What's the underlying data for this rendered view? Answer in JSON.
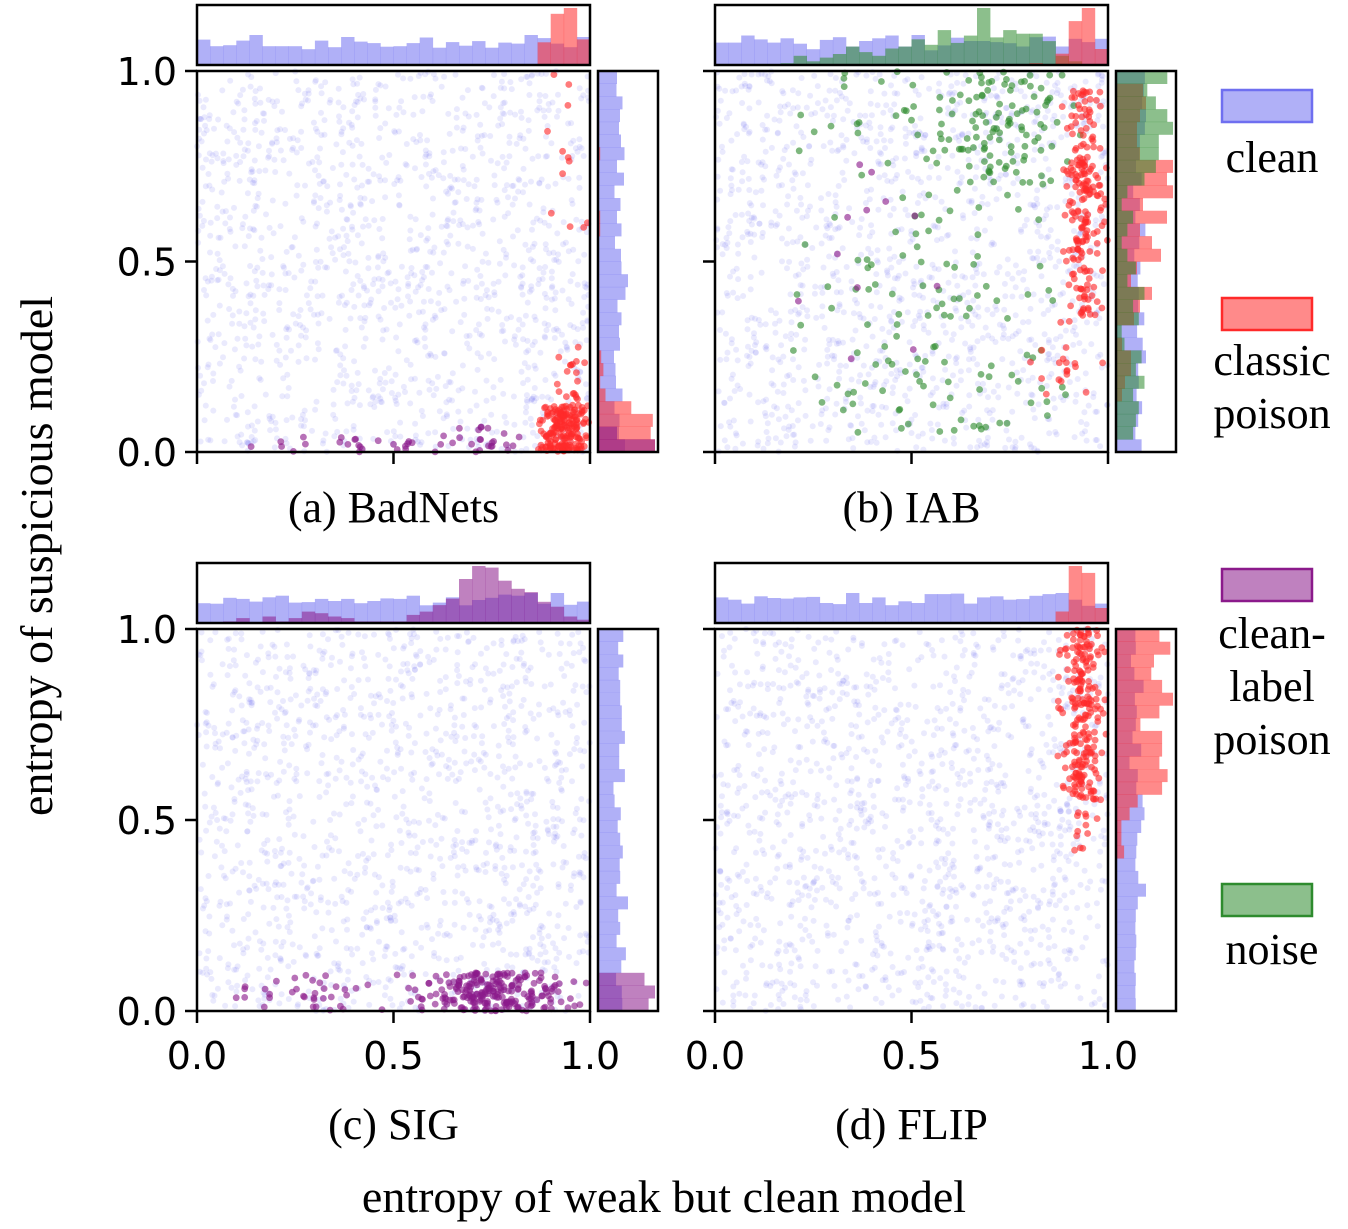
{
  "figure": {
    "ylabel": "entropy of suspicious model",
    "xlabel": "entropy of weak but clean model"
  },
  "colors": {
    "clean": "#6f6ff0",
    "classic_poison": "#ff2a2a",
    "clean_label_poison": "#8b1a8b",
    "noise": "#2e8b2e"
  },
  "legend": {
    "items": [
      {
        "key": "clean",
        "lines": [
          "clean"
        ]
      },
      {
        "key": "classic_poison",
        "lines": [
          "classic",
          "poison"
        ]
      },
      {
        "key": "clean_label_poison",
        "lines": [
          "clean-",
          "label",
          "poison"
        ]
      },
      {
        "key": "noise",
        "lines": [
          "noise"
        ]
      }
    ]
  },
  "chart_data": [
    {
      "type": "scatter",
      "title": "(a) BadNets",
      "xlim": [
        0,
        1
      ],
      "ylim": [
        0,
        1
      ],
      "xticks": [
        "0.0",
        "0.5",
        "1.0"
      ],
      "yticks": [
        "0.0",
        "0.5",
        "1.0"
      ],
      "show_xtick_labels": false,
      "show_ytick_labels": true,
      "series": [
        {
          "name": "clean",
          "dist": "uniform",
          "n": 1300
        },
        {
          "name": "classic poison",
          "clusters": [
            {
              "x": [
                0.86,
                1.0
              ],
              "y": [
                0.0,
                0.12
              ],
              "n": 180
            },
            {
              "x": [
                0.9,
                1.0
              ],
              "y": [
                0.12,
                0.3
              ],
              "n": 22
            },
            {
              "x": [
                0.88,
                1.0
              ],
              "y": [
                0.55,
                1.0
              ],
              "n": 12
            }
          ]
        },
        {
          "name": "clean-label poison",
          "clusters": [
            {
              "x": [
                0.08,
                0.85
              ],
              "y": [
                0.0,
                0.04
              ],
              "n": 30
            },
            {
              "x": [
                0.62,
                0.86
              ],
              "y": [
                0.0,
                0.07
              ],
              "n": 18
            }
          ]
        }
      ],
      "marginals": {
        "top": [
          "clean",
          "classic poison"
        ],
        "right": [
          "clean",
          "classic poison",
          "clean-label poison"
        ]
      }
    },
    {
      "type": "scatter",
      "title": "(b) IAB",
      "xlim": [
        0,
        1
      ],
      "ylim": [
        0,
        1
      ],
      "xticks": [
        "0.0",
        "0.5",
        "1.0"
      ],
      "yticks": [
        "0.0",
        "0.5",
        "1.0"
      ],
      "show_xtick_labels": false,
      "show_ytick_labels": false,
      "series": [
        {
          "name": "clean",
          "dist": "uniform",
          "n": 1300
        },
        {
          "name": "classic poison",
          "clusters": [
            {
              "x": [
                0.88,
                1.0
              ],
              "y": [
                0.35,
                0.95
              ],
              "n": 200
            },
            {
              "x": [
                0.8,
                1.0
              ],
              "y": [
                0.15,
                0.4
              ],
              "n": 20
            }
          ]
        },
        {
          "name": "noise",
          "clusters": [
            {
              "x": [
                0.15,
                0.95
              ],
              "y": [
                0.05,
                1.0
              ],
              "n": 160
            },
            {
              "x": [
                0.5,
                0.95
              ],
              "y": [
                0.7,
                1.0
              ],
              "n": 90
            }
          ]
        },
        {
          "name": "clean-label poison",
          "clusters": [
            {
              "x": [
                0.1,
                0.7
              ],
              "y": [
                0.15,
                0.85
              ],
              "n": 12
            }
          ]
        }
      ],
      "marginals": {
        "top": [
          "clean",
          "noise",
          "classic poison"
        ],
        "right": [
          "clean",
          "classic poison",
          "noise"
        ]
      }
    },
    {
      "type": "scatter",
      "title": "(c) SIG",
      "xlim": [
        0,
        1
      ],
      "ylim": [
        0,
        1
      ],
      "xticks": [
        "0.0",
        "0.5",
        "1.0"
      ],
      "yticks": [
        "0.0",
        "0.5",
        "1.0"
      ],
      "show_xtick_labels": true,
      "show_ytick_labels": true,
      "series": [
        {
          "name": "clean",
          "dist": "uniform",
          "n": 1300
        },
        {
          "name": "clean-label poison",
          "clusters": [
            {
              "x": [
                0.5,
                1.0
              ],
              "y": [
                0.0,
                0.1
              ],
              "n": 230
            },
            {
              "x": [
                0.05,
                0.5
              ],
              "y": [
                0.0,
                0.1
              ],
              "n": 35
            }
          ]
        }
      ],
      "marginals": {
        "top": [
          "clean",
          "clean-label poison"
        ],
        "right": [
          "clean",
          "clean-label poison"
        ]
      }
    },
    {
      "type": "scatter",
      "title": "(d) FLIP",
      "xlim": [
        0,
        1
      ],
      "ylim": [
        0,
        1
      ],
      "xticks": [
        "0.0",
        "0.5",
        "1.0"
      ],
      "yticks": [
        "0.0",
        "0.5",
        "1.0"
      ],
      "show_xtick_labels": true,
      "show_ytick_labels": false,
      "series": [
        {
          "name": "clean",
          "dist": "uniform",
          "n": 1300
        },
        {
          "name": "classic poison",
          "clusters": [
            {
              "x": [
                0.87,
                1.0
              ],
              "y": [
                0.55,
                1.0
              ],
              "n": 220
            },
            {
              "x": [
                0.88,
                0.98
              ],
              "y": [
                0.42,
                0.55
              ],
              "n": 12
            }
          ]
        }
      ],
      "marginals": {
        "top": [
          "clean",
          "classic poison"
        ],
        "right": [
          "clean",
          "classic poison"
        ]
      }
    }
  ]
}
